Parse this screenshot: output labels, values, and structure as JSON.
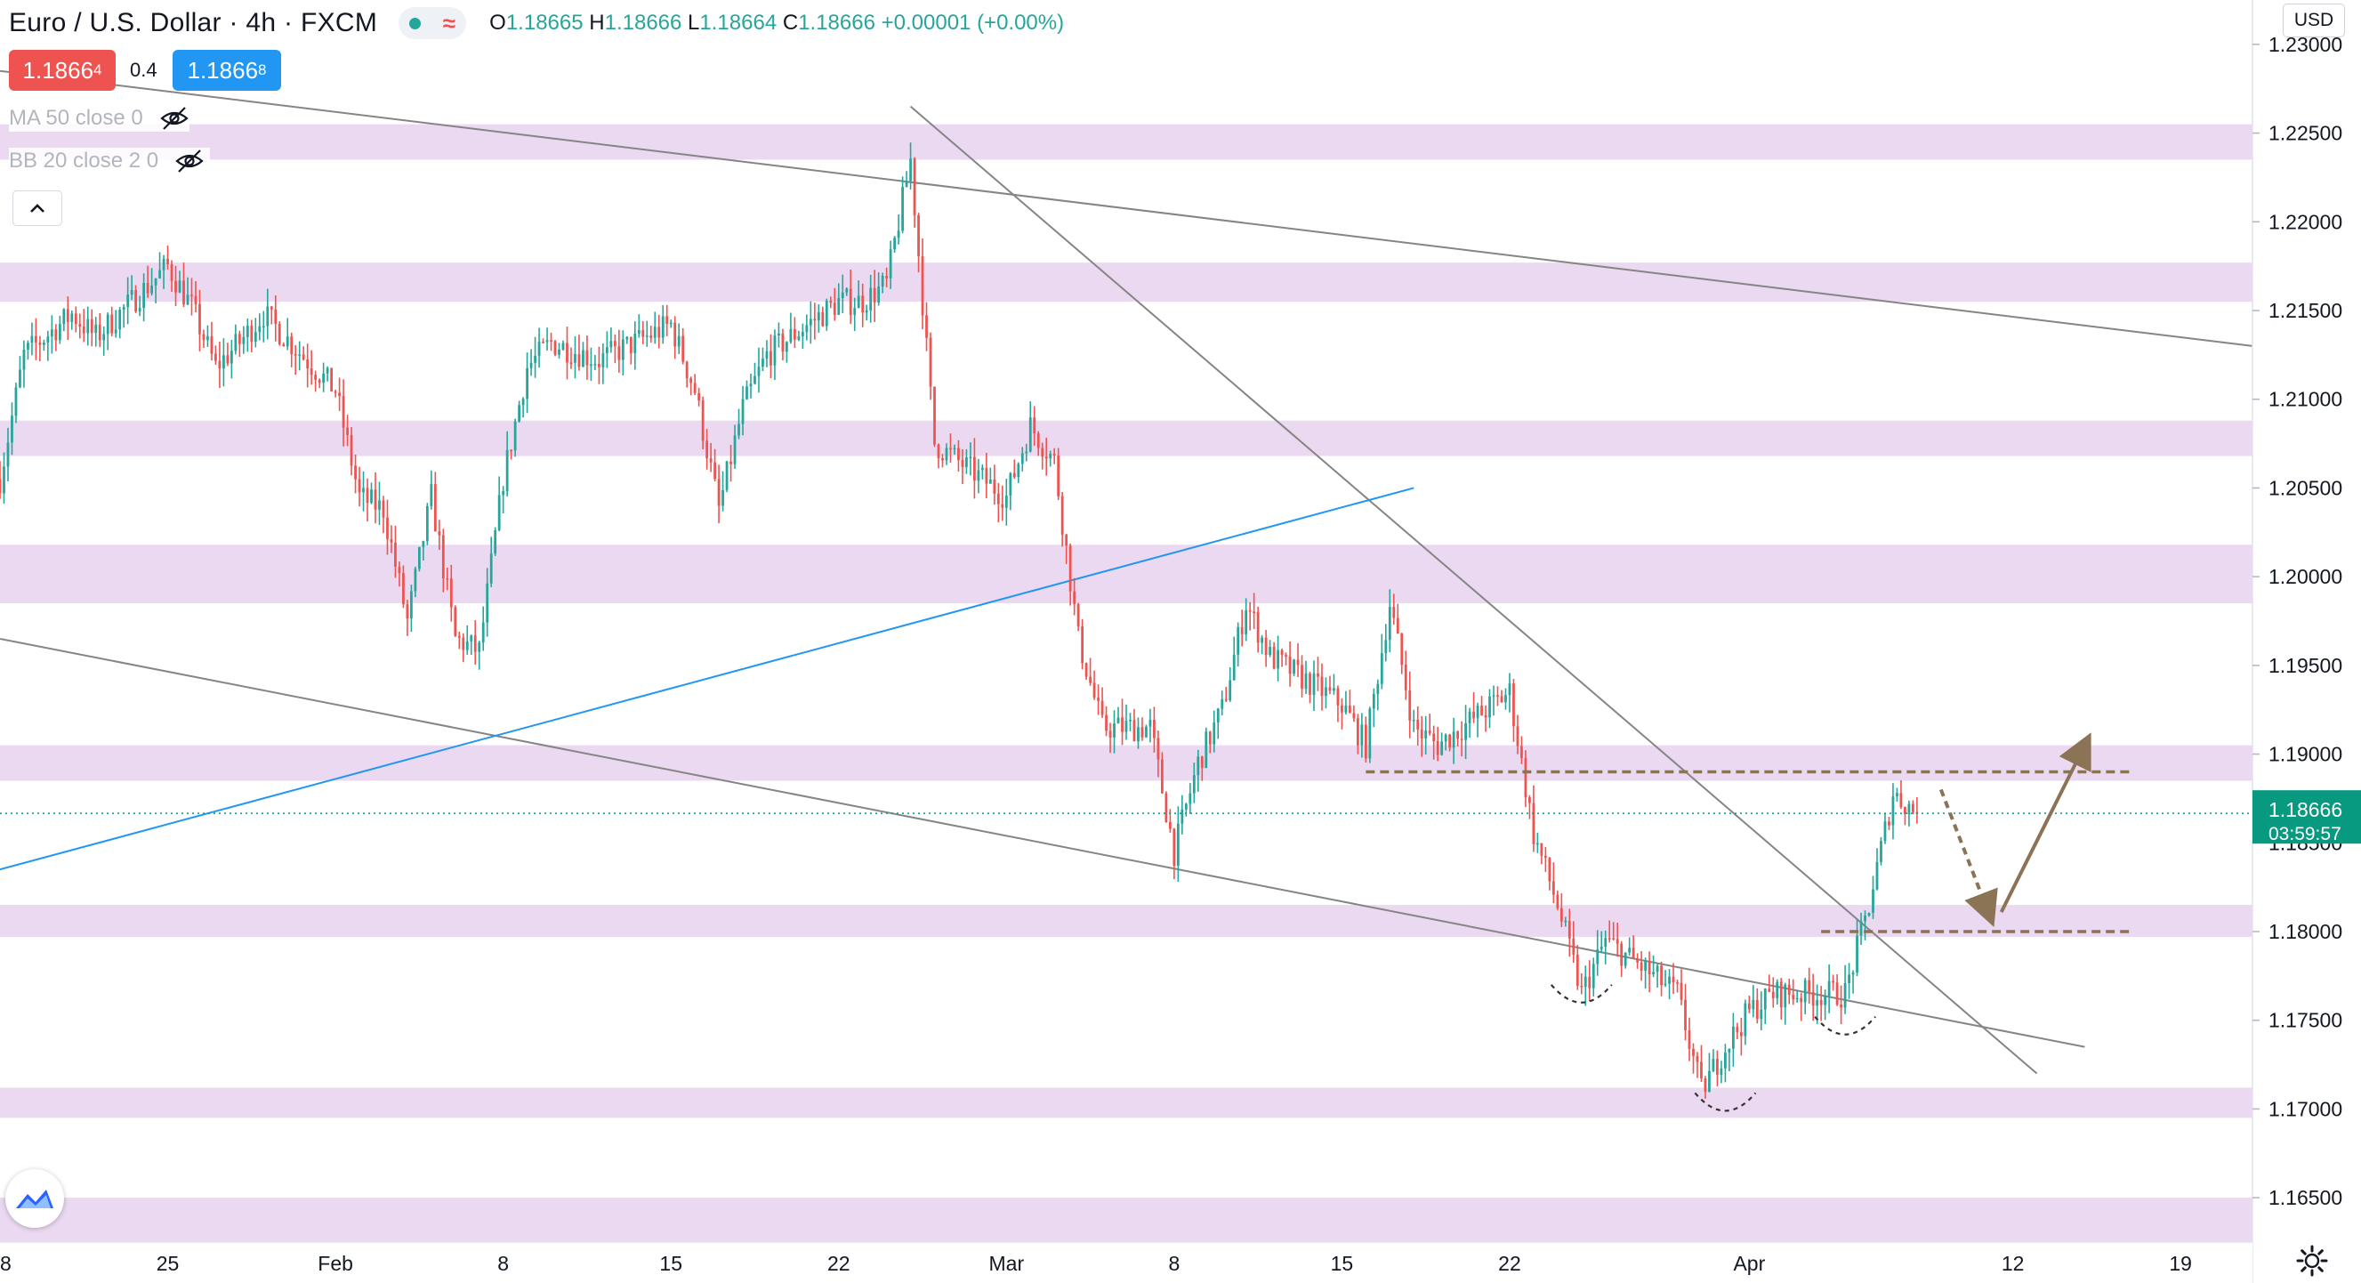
{
  "header": {
    "symbol_title": "Euro / U.S. Dollar",
    "interval": "4h",
    "exchange": "FXCM",
    "ohlc": {
      "o_label": "O",
      "o": "1.18665",
      "h_label": "H",
      "h": "1.18666",
      "l_label": "L",
      "l": "1.18664",
      "c_label": "C",
      "c": "1.18666",
      "change": "+0.00001 (+0.00%)"
    },
    "sell_price_main": "1.1866",
    "sell_price_sup": "4",
    "spread": "0.4",
    "buy_price_main": "1.1866",
    "buy_price_sup": "8",
    "buttons": {
      "collapse_icon": "chevron-up-icon",
      "visibility_icon": "eye-off-icon"
    }
  },
  "indicators": [
    {
      "label": "MA 50 close 0"
    },
    {
      "label": "BB 20 close 2 0"
    }
  ],
  "price_axis": {
    "currency": "USD",
    "last_price_label": "1.18666",
    "countdown": "03:59:57"
  },
  "colors": {
    "up": "#26a69a",
    "down": "#ef5350",
    "zone": "#e8d2ee",
    "last_price": "#089981",
    "trendline": "#858585",
    "channel_line": "#2196f3",
    "projection": "#8b7355"
  },
  "chart_data": {
    "type": "candlestick",
    "symbol": "Euro / U.S. Dollar",
    "interval": "4h",
    "ylim": [
      1.1625,
      1.2325
    ],
    "y_ticks": [
      1.165,
      1.17,
      1.175,
      1.18,
      1.185,
      1.19,
      1.195,
      1.2,
      1.205,
      1.21,
      1.215,
      1.22,
      1.225,
      1.23
    ],
    "x_range": [
      "2021-01-18",
      "2021-04-22"
    ],
    "x_ticks": [
      {
        "date": "2021-01-18",
        "label": "18"
      },
      {
        "date": "2021-01-25",
        "label": "25"
      },
      {
        "date": "2021-02-01",
        "label": "Feb"
      },
      {
        "date": "2021-02-08",
        "label": "8"
      },
      {
        "date": "2021-02-15",
        "label": "15"
      },
      {
        "date": "2021-02-22",
        "label": "22"
      },
      {
        "date": "2021-03-01",
        "label": "Mar"
      },
      {
        "date": "2021-03-08",
        "label": "8"
      },
      {
        "date": "2021-03-15",
        "label": "15"
      },
      {
        "date": "2021-03-22",
        "label": "22"
      },
      {
        "date": "2021-03-29",
        "label": ""
      },
      {
        "date": "2021-04-01",
        "label": "Apr"
      },
      {
        "date": "2021-04-12",
        "label": "12"
      },
      {
        "date": "2021-04-19",
        "label": "19"
      }
    ],
    "price_path": [
      [
        "2021-01-18",
        1.2055
      ],
      [
        "2021-01-19",
        1.2125
      ],
      [
        "2021-01-21",
        1.2148
      ],
      [
        "2021-01-22",
        1.2135
      ],
      [
        "2021-01-25",
        1.2175
      ],
      [
        "2021-01-26",
        1.2152
      ],
      [
        "2021-01-27",
        1.2118
      ],
      [
        "2021-01-28",
        1.2132
      ],
      [
        "2021-01-29",
        1.2148
      ],
      [
        "2021-02-01",
        1.2105
      ],
      [
        "2021-02-02",
        1.2045
      ],
      [
        "2021-02-03",
        1.2038
      ],
      [
        "2021-02-04",
        1.1975
      ],
      [
        "2021-02-05",
        1.2045
      ],
      [
        "2021-02-06",
        1.1965
      ],
      [
        "2021-02-07",
        1.1958
      ],
      [
        "2021-02-08",
        1.2055
      ],
      [
        "2021-02-09",
        1.2118
      ],
      [
        "2021-02-10",
        1.2132
      ],
      [
        "2021-02-12",
        1.2122
      ],
      [
        "2021-02-15",
        1.2142
      ],
      [
        "2021-02-16",
        1.2105
      ],
      [
        "2021-02-17",
        1.2038
      ],
      [
        "2021-02-18",
        1.2095
      ],
      [
        "2021-02-19",
        1.2125
      ],
      [
        "2021-02-22",
        1.2155
      ],
      [
        "2021-02-23",
        1.2155
      ],
      [
        "2021-02-24",
        1.2165
      ],
      [
        "2021-02-25",
        1.2235
      ],
      [
        "2021-02-26",
        1.2075
      ],
      [
        "2021-03-01",
        1.2045
      ],
      [
        "2021-03-02",
        1.2085
      ],
      [
        "2021-03-03",
        1.2065
      ],
      [
        "2021-03-04",
        1.1965
      ],
      [
        "2021-03-05",
        1.1915
      ],
      [
        "2021-03-07",
        1.1915
      ],
      [
        "2021-03-08",
        1.1845
      ],
      [
        "2021-03-09",
        1.1895
      ],
      [
        "2021-03-10",
        1.1925
      ],
      [
        "2021-03-11",
        1.1985
      ],
      [
        "2021-03-12",
        1.1955
      ],
      [
        "2021-03-15",
        1.1928
      ],
      [
        "2021-03-16",
        1.1905
      ],
      [
        "2021-03-17",
        1.1985
      ],
      [
        "2021-03-18",
        1.1915
      ],
      [
        "2021-03-19",
        1.1905
      ],
      [
        "2021-03-22",
        1.1935
      ],
      [
        "2021-03-23",
        1.1855
      ],
      [
        "2021-03-24",
        1.1815
      ],
      [
        "2021-03-25",
        1.1765
      ],
      [
        "2021-03-26",
        1.1795
      ],
      [
        "2021-03-29",
        1.1765
      ],
      [
        "2021-03-30",
        1.171
      ],
      [
        "2021-03-31",
        1.1735
      ],
      [
        "2021-04-01",
        1.1755
      ],
      [
        "2021-04-02",
        1.1765
      ],
      [
        "2021-04-05",
        1.1765
      ],
      [
        "2021-04-06",
        1.1815
      ],
      [
        "2021-04-07",
        1.1878
      ],
      [
        "2021-04-08",
        1.18666
      ]
    ],
    "horizontal_zones": [
      {
        "from": 1.2235,
        "to": 1.2255
      },
      {
        "from": 1.2155,
        "to": 1.2177
      },
      {
        "from": 1.2068,
        "to": 1.2088
      },
      {
        "from": 1.1985,
        "to": 1.2018
      },
      {
        "from": 1.1885,
        "to": 1.1905
      },
      {
        "from": 1.1797,
        "to": 1.1815
      },
      {
        "from": 1.1695,
        "to": 1.1712
      },
      {
        "from": 1.1625,
        "to": 1.165
      }
    ],
    "trendlines": [
      {
        "kind": "resistance",
        "from": [
          "2021-01-18",
          1.2285
        ],
        "to": [
          "2021-04-22",
          1.213
        ]
      },
      {
        "kind": "support",
        "from": [
          "2021-01-18",
          1.1965
        ],
        "to": [
          "2021-04-15",
          1.1735
        ]
      },
      {
        "kind": "steep",
        "from": [
          "2021-02-25",
          1.2265
        ],
        "to": [
          "2021-04-13",
          1.172
        ]
      },
      {
        "kind": "blue",
        "from": [
          "2021-01-18",
          1.1835
        ],
        "to": [
          "2021-03-18",
          1.205
        ]
      }
    ],
    "key_levels": [
      {
        "price": 1.189,
        "from": "2021-03-16",
        "to": "2021-04-17"
      },
      {
        "price": 1.18,
        "from": "2021-04-04",
        "to": "2021-04-17"
      }
    ],
    "projection": [
      [
        "2021-04-09",
        1.188
      ],
      [
        "2021-04-11",
        1.181
      ],
      [
        "2021-04-15",
        1.1905
      ]
    ],
    "last_price": 1.18666
  }
}
